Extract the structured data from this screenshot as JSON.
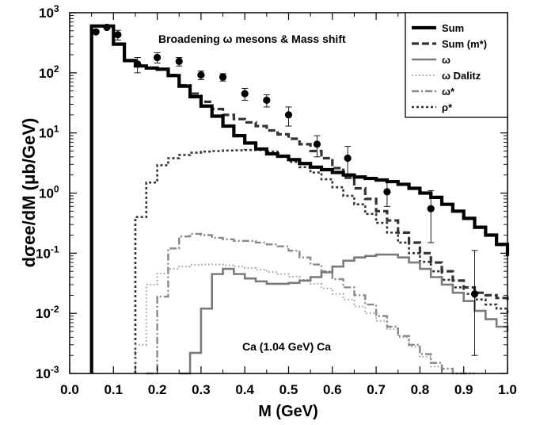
{
  "chart_data": {
    "type": "line",
    "title": "Broadening ω  mesons & Mass shift",
    "annotation": "Ca (1.04 GeV) Ca",
    "xlabel": "M (GeV)",
    "ylabel": "dσee/dM (μb/GeV)",
    "xlim": [
      0.0,
      1.0
    ],
    "ylim": [
      0.001,
      1000
    ],
    "yscale": "log",
    "grid": false,
    "legend_position": "top-right",
    "x_ticks": [
      "0.0",
      "0.1",
      "0.2",
      "0.3",
      "0.4",
      "0.5",
      "0.6",
      "0.7",
      "0.8",
      "0.9",
      "1.0"
    ],
    "y_ticks": [
      "10-3",
      "10-2",
      "10-1",
      "100",
      "101",
      "102",
      "103"
    ],
    "series": [
      {
        "name": "Sum",
        "style": "solid-thick",
        "color": "#000000",
        "x": [
          0.05,
          0.075,
          0.1,
          0.125,
          0.15,
          0.175,
          0.2,
          0.225,
          0.25,
          0.275,
          0.3,
          0.325,
          0.35,
          0.375,
          0.4,
          0.425,
          0.45,
          0.475,
          0.5,
          0.525,
          0.55,
          0.575,
          0.6,
          0.625,
          0.65,
          0.675,
          0.7,
          0.725,
          0.75,
          0.775,
          0.8,
          0.825,
          0.85,
          0.875,
          0.9,
          0.925,
          0.95,
          0.975,
          1.0
        ],
        "y": [
          600,
          600,
          300,
          160,
          130,
          120,
          115,
          90,
          60,
          40,
          28,
          19,
          13,
          9,
          6.8,
          5.4,
          4.5,
          4.1,
          3.6,
          3.1,
          2.7,
          2.45,
          2.2,
          2.0,
          1.85,
          1.75,
          1.65,
          1.55,
          1.4,
          1.2,
          1.0,
          0.85,
          0.65,
          0.5,
          0.38,
          0.27,
          0.2,
          0.14,
          0.09
        ]
      },
      {
        "name": "Sum (m*)",
        "style": "dashed",
        "color": "#333333",
        "x": [
          0.05,
          0.075,
          0.1,
          0.125,
          0.15,
          0.175,
          0.2,
          0.225,
          0.25,
          0.275,
          0.3,
          0.325,
          0.35,
          0.375,
          0.4,
          0.425,
          0.45,
          0.475,
          0.5,
          0.525,
          0.55,
          0.575,
          0.6,
          0.625,
          0.65,
          0.675,
          0.7,
          0.725,
          0.75,
          0.775,
          0.8,
          0.825,
          0.85,
          0.875,
          0.9,
          0.925,
          0.95,
          0.975,
          1.0
        ],
        "y": [
          600,
          600,
          300,
          160,
          130,
          120,
          115,
          92,
          62,
          45,
          33,
          25,
          20,
          17,
          15,
          13,
          11,
          9.5,
          8.0,
          6.5,
          5.0,
          3.8,
          2.6,
          1.8,
          1.2,
          0.8,
          0.5,
          0.35,
          0.22,
          0.15,
          0.1,
          0.07,
          0.05,
          0.035,
          0.027,
          0.022,
          0.02,
          0.018,
          0.015
        ]
      },
      {
        "name": "ω",
        "style": "solid",
        "color": "#7a7a7a",
        "x": [
          0.25,
          0.275,
          0.3,
          0.325,
          0.35,
          0.375,
          0.4,
          0.425,
          0.45,
          0.475,
          0.5,
          0.525,
          0.55,
          0.575,
          0.6,
          0.625,
          0.65,
          0.675,
          0.7,
          0.725,
          0.75,
          0.775,
          0.8,
          0.825,
          0.85,
          0.875,
          0.9,
          0.925,
          0.95,
          0.975,
          1.0
        ],
        "y": [
          0.001,
          0.0022,
          0.012,
          0.045,
          0.055,
          0.045,
          0.038,
          0.034,
          0.031,
          0.031,
          0.032,
          0.035,
          0.04,
          0.048,
          0.06,
          0.075,
          0.085,
          0.09,
          0.095,
          0.095,
          0.085,
          0.07,
          0.055,
          0.04,
          0.03,
          0.022,
          0.016,
          0.011,
          0.008,
          0.006,
          0.005
        ]
      },
      {
        "name": "ω Dalitz",
        "style": "dotted",
        "color": "#9a9a9a",
        "x": [
          0.15,
          0.175,
          0.2,
          0.225,
          0.25,
          0.275,
          0.3,
          0.325,
          0.35,
          0.375,
          0.4,
          0.425,
          0.45,
          0.475,
          0.5,
          0.525,
          0.55,
          0.575,
          0.6,
          0.625,
          0.65,
          0.675,
          0.7,
          0.725,
          0.75,
          0.775,
          0.8,
          0.825,
          0.85
        ],
        "y": [
          0.003,
          0.03,
          0.046,
          0.055,
          0.06,
          0.064,
          0.065,
          0.065,
          0.063,
          0.06,
          0.057,
          0.053,
          0.049,
          0.045,
          0.041,
          0.036,
          0.031,
          0.026,
          0.021,
          0.017,
          0.013,
          0.01,
          0.0075,
          0.0055,
          0.004,
          0.0028,
          0.0019,
          0.0013,
          0.001
        ]
      },
      {
        "name": "ω*",
        "style": "dash-dot",
        "color": "#888888",
        "x": [
          0.175,
          0.2,
          0.225,
          0.25,
          0.275,
          0.3,
          0.325,
          0.35,
          0.375,
          0.4,
          0.425,
          0.45,
          0.475,
          0.5,
          0.525,
          0.55,
          0.575,
          0.6,
          0.625,
          0.65,
          0.675,
          0.7,
          0.725,
          0.75,
          0.775,
          0.8,
          0.825,
          0.85,
          0.875,
          0.9,
          0.925
        ],
        "y": [
          0.001,
          0.019,
          0.12,
          0.19,
          0.21,
          0.2,
          0.18,
          0.17,
          0.16,
          0.16,
          0.15,
          0.14,
          0.13,
          0.11,
          0.085,
          0.065,
          0.05,
          0.037,
          0.027,
          0.02,
          0.014,
          0.009,
          0.006,
          0.0042,
          0.003,
          0.0021,
          0.0015,
          0.0012,
          0.001,
          0.001,
          0.001
        ]
      },
      {
        "name": "ρ*",
        "style": "dotted-thick",
        "color": "#333333",
        "x": [
          0.15,
          0.175,
          0.2,
          0.225,
          0.25,
          0.275,
          0.3,
          0.325,
          0.35,
          0.375,
          0.4,
          0.425,
          0.45,
          0.475,
          0.5,
          0.525,
          0.55,
          0.575,
          0.6,
          0.625,
          0.65,
          0.675,
          0.7,
          0.725,
          0.75,
          0.775,
          0.8,
          0.825,
          0.85,
          0.875,
          0.9,
          0.925,
          0.95,
          0.975,
          1.0
        ],
        "y": [
          0.4,
          1.5,
          2.9,
          3.8,
          4.3,
          4.7,
          4.9,
          5.0,
          5.1,
          5.15,
          5.2,
          5.2,
          4.9,
          4.0,
          3.3,
          2.7,
          2.2,
          1.7,
          1.25,
          0.9,
          0.65,
          0.45,
          0.32,
          0.22,
          0.15,
          0.1,
          0.072,
          0.05,
          0.036,
          0.027,
          0.021,
          0.017,
          0.014,
          0.012,
          0.01
        ]
      }
    ],
    "data_points": {
      "x": [
        0.06,
        0.085,
        0.11,
        0.155,
        0.2,
        0.25,
        0.3,
        0.35,
        0.4,
        0.45,
        0.5,
        0.565,
        0.635,
        0.725,
        0.825,
        0.925
      ],
      "y": [
        480,
        570,
        430,
        140,
        180,
        155,
        92,
        85,
        45,
        35,
        20,
        6.5,
        3.8,
        1.05,
        0.55,
        0.021
      ],
      "err_low": [
        0,
        0,
        80,
        40,
        35,
        25,
        15,
        12,
        10,
        8,
        7,
        2.5,
        1.8,
        0.45,
        0.4,
        0.019
      ],
      "err_high": [
        0,
        0,
        80,
        40,
        35,
        25,
        15,
        12,
        10,
        8,
        7,
        2.5,
        2.2,
        0.55,
        0.55,
        0.09
      ]
    }
  }
}
